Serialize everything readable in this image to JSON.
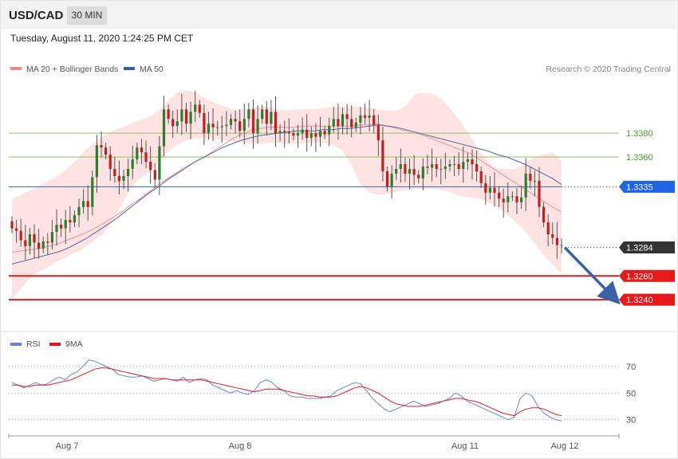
{
  "header": {
    "symbol": "USD/CAD",
    "timeframe": "30 MIN",
    "datetime": "Tuesday, August 11, 2020 1:24:25 PM CET"
  },
  "legend": {
    "ma20_label": "MA 20 + Bollinger Bands",
    "ma50_label": "MA 50",
    "ma20_color": "#f08a8a",
    "ma50_color": "#3a5f9f",
    "credit": "Research © 2020 Trading Central"
  },
  "chart_data": [
    {
      "type": "candlestick",
      "ylim": [
        1.322,
        1.3425
      ],
      "x_ticks": [
        "Aug 7",
        "Aug 8",
        "Aug 11",
        "Aug 12"
      ],
      "levels": [
        {
          "value": 1.338,
          "label": "1.3380",
          "style": "green-line",
          "color": "#8cc06a"
        },
        {
          "value": 1.336,
          "label": "1.3360",
          "style": "green-line",
          "color": "#8cc06a"
        },
        {
          "value": 1.3335,
          "label": "1.3335",
          "style": "blue-tag",
          "color": "#1f63e6"
        },
        {
          "value": 1.3284,
          "label": "1.3284",
          "style": "price-tag",
          "color": "#333333"
        },
        {
          "value": 1.326,
          "label": "1.3260",
          "style": "red-line",
          "color": "#e61a1a"
        },
        {
          "value": 1.324,
          "label": "1.3240",
          "style": "red-line",
          "color": "#e61a1a"
        }
      ],
      "bullish_color": "#2d7d2d",
      "bearish_color": "#c41f1f",
      "closes": [
        1.33,
        1.3298,
        1.329,
        1.3285,
        1.3295,
        1.3288,
        1.3283,
        1.3289,
        1.3288,
        1.3297,
        1.3303,
        1.33,
        1.3307,
        1.3305,
        1.3311,
        1.3318,
        1.3323,
        1.3318,
        1.3343,
        1.337,
        1.3368,
        1.3362,
        1.335,
        1.3344,
        1.334,
        1.3344,
        1.335,
        1.3358,
        1.3368,
        1.3364,
        1.3356,
        1.3349,
        1.3341,
        1.3369,
        1.34,
        1.3392,
        1.3386,
        1.339,
        1.34,
        1.3388,
        1.3398,
        1.3404,
        1.3397,
        1.338,
        1.3388,
        1.3385,
        1.3385,
        1.3386,
        1.3387,
        1.3392,
        1.339,
        1.3382,
        1.3392,
        1.34,
        1.338,
        1.3392,
        1.34,
        1.3388,
        1.3398,
        1.338,
        1.3382,
        1.3381,
        1.338,
        1.3378,
        1.338,
        1.3383,
        1.3376,
        1.338,
        1.3377,
        1.3382,
        1.3379,
        1.3386,
        1.3392,
        1.3386,
        1.3396,
        1.3392,
        1.3385,
        1.3389,
        1.3395,
        1.3393,
        1.3395,
        1.3387,
        1.3374,
        1.3348,
        1.3335,
        1.3346,
        1.335,
        1.3354,
        1.3346,
        1.335,
        1.3345,
        1.3342,
        1.3352,
        1.3351,
        1.3354,
        1.335,
        1.335,
        1.3352,
        1.3354,
        1.3354,
        1.335,
        1.3356,
        1.3358,
        1.3354,
        1.3348,
        1.3338,
        1.333,
        1.3334,
        1.333,
        1.3325,
        1.3322,
        1.3327,
        1.3327,
        1.3322,
        1.3326,
        1.3346,
        1.334,
        1.334,
        1.3318,
        1.3305,
        1.3295,
        1.3292,
        1.3286,
        1.3286
      ],
      "ma20": [
        1.328,
        1.3281,
        1.3282,
        1.3283,
        1.3285,
        1.3287,
        1.329,
        1.3293,
        1.3296,
        1.33,
        1.3304,
        1.3309,
        1.3314,
        1.332,
        1.3325,
        1.3331,
        1.3337,
        1.3342,
        1.3347,
        1.3352,
        1.3356,
        1.336,
        1.3365,
        1.337,
        1.3375,
        1.3379,
        1.3382,
        1.3384,
        1.3385,
        1.3385,
        1.3385,
        1.3385,
        1.3386,
        1.3386,
        1.3386,
        1.3386,
        1.3386,
        1.3386,
        1.3387,
        1.3387,
        1.3388,
        1.3386,
        1.3384,
        1.3382,
        1.338,
        1.3378,
        1.3375,
        1.3372,
        1.3369,
        1.3366,
        1.3363,
        1.3358,
        1.3353,
        1.3348,
        1.3343,
        1.3338,
        1.3333,
        1.3328,
        1.3323,
        1.3318,
        1.3314
      ],
      "ma50": [
        1.327,
        1.3272,
        1.3274,
        1.3276,
        1.3278,
        1.328,
        1.3283,
        1.3287,
        1.3291,
        1.3296,
        1.3301,
        1.3306,
        1.3312,
        1.3318,
        1.3324,
        1.333,
        1.3335,
        1.3341,
        1.3346,
        1.3351,
        1.3356,
        1.336,
        1.3364,
        1.3368,
        1.3371,
        1.3374,
        1.3376,
        1.3378,
        1.3379,
        1.338,
        1.3381,
        1.3382,
        1.3382,
        1.3382,
        1.3383,
        1.3383,
        1.3384,
        1.3384,
        1.3385,
        1.3386,
        1.3387,
        1.3386,
        1.3385,
        1.3383,
        1.3381,
        1.3379,
        1.3377,
        1.3375,
        1.3373,
        1.3371,
        1.3369,
        1.3367,
        1.3365,
        1.3362,
        1.336,
        1.3357,
        1.3354,
        1.335,
        1.3346,
        1.3342,
        1.3337
      ],
      "bollinger_upper": [
        1.3325,
        1.3328,
        1.3332,
        1.3336,
        1.334,
        1.3344,
        1.335,
        1.3357,
        1.3366,
        1.3372,
        1.3378,
        1.3382,
        1.3385,
        1.3388,
        1.3391,
        1.3394,
        1.3399,
        1.3407,
        1.3414,
        1.3416,
        1.3414,
        1.341,
        1.3406,
        1.3403,
        1.34,
        1.34,
        1.3401,
        1.3402,
        1.3402,
        1.34,
        1.3399,
        1.34,
        1.34,
        1.34,
        1.3401,
        1.3402,
        1.3402,
        1.3402,
        1.3402,
        1.3401,
        1.34,
        1.3399,
        1.3399,
        1.3403,
        1.3413,
        1.3414,
        1.3413,
        1.3408,
        1.3399,
        1.339,
        1.3378,
        1.3366,
        1.3356,
        1.335,
        1.335,
        1.335,
        1.3355,
        1.336,
        1.3362,
        1.3364,
        1.3357
      ],
      "bollinger_lower": [
        1.324,
        1.325,
        1.3258,
        1.3264,
        1.3268,
        1.3272,
        1.3276,
        1.328,
        1.3284,
        1.329,
        1.3296,
        1.3306,
        1.332,
        1.3334,
        1.3342,
        1.3348,
        1.3356,
        1.3364,
        1.337,
        1.3374,
        1.3376,
        1.3376,
        1.3375,
        1.3374,
        1.3373,
        1.3372,
        1.3371,
        1.3371,
        1.3372,
        1.3372,
        1.3371,
        1.3371,
        1.3372,
        1.3372,
        1.3372,
        1.337,
        1.3366,
        1.3354,
        1.3338,
        1.333,
        1.3328,
        1.3329,
        1.3331,
        1.3332,
        1.3333,
        1.3333,
        1.3333,
        1.3332,
        1.333,
        1.3327,
        1.3326,
        1.3325,
        1.3322,
        1.3318,
        1.3312,
        1.3305,
        1.3298,
        1.3288,
        1.3278,
        1.327,
        1.3262
      ],
      "forecast_arrow": {
        "from": 1.3284,
        "to": 1.324
      }
    },
    {
      "type": "line",
      "indicator": "RSI",
      "ylim": [
        22,
        82
      ],
      "y_ticks": [
        70,
        50,
        30
      ],
      "series": [
        {
          "name": "RSI",
          "color": "#6a85d6",
          "values": [
            58,
            56,
            54,
            56,
            58,
            56,
            57,
            60,
            62,
            60,
            64,
            66,
            70,
            75,
            74,
            72,
            70,
            68,
            64,
            63,
            62,
            62,
            63,
            61,
            59,
            60,
            61,
            60,
            59,
            62,
            58,
            60,
            61,
            60,
            56,
            54,
            52,
            50,
            52,
            50,
            49,
            52,
            58,
            60,
            58,
            54,
            52,
            48,
            47,
            47,
            46,
            46,
            46,
            47,
            48,
            52,
            54,
            56,
            58,
            57,
            52,
            46,
            42,
            38,
            36,
            38,
            40,
            42,
            44,
            42,
            40,
            41,
            42,
            44,
            46,
            50,
            48,
            44,
            42,
            40,
            38,
            36,
            34,
            32,
            30,
            32,
            46,
            50,
            48,
            40,
            35,
            32,
            30,
            29
          ]
        },
        {
          "name": "9MA",
          "color": "#e61a1a",
          "values": [
            56,
            56,
            55,
            55,
            56,
            56,
            56,
            57,
            58,
            59,
            60,
            62,
            64,
            66,
            68,
            69,
            69,
            68,
            67,
            66,
            65,
            64,
            63,
            62,
            61,
            61,
            61,
            60,
            60,
            60,
            60,
            60,
            60,
            59,
            58,
            57,
            56,
            55,
            54,
            53,
            52,
            51,
            52,
            53,
            53,
            53,
            52,
            51,
            50,
            49,
            48,
            48,
            47,
            47,
            47,
            48,
            50,
            52,
            54,
            55,
            54,
            52,
            50,
            47,
            44,
            42,
            41,
            40,
            40,
            40,
            41,
            42,
            43,
            44,
            45,
            46,
            46,
            45,
            44,
            43,
            41,
            39,
            37,
            35,
            34,
            33,
            36,
            38,
            39,
            39,
            38,
            36,
            34,
            33
          ]
        }
      ]
    }
  ]
}
